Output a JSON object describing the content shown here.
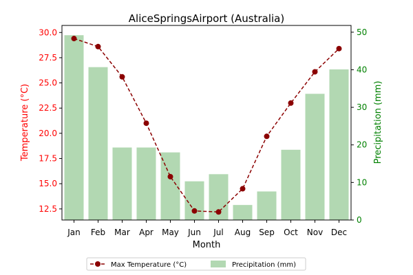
{
  "chart_data": {
    "type": "bar+line",
    "title": "AliceSpringsAirport (Australia)",
    "xlabel": "Month",
    "categories": [
      "Jan",
      "Feb",
      "Mar",
      "Apr",
      "May",
      "Jun",
      "Jul",
      "Aug",
      "Sep",
      "Oct",
      "Nov",
      "Dec"
    ],
    "y_left": {
      "label": "Temperature (°C)",
      "range": [
        11.4,
        30.7
      ],
      "ticks": [
        "12.5",
        "15.0",
        "17.5",
        "20.0",
        "22.5",
        "25.0",
        "27.5",
        "30.0"
      ],
      "color": "#ff0000"
    },
    "y_right": {
      "label": "Precipitation (mm)",
      "range": [
        0,
        51.8
      ],
      "ticks": [
        "0",
        "10",
        "20",
        "30",
        "40",
        "50"
      ],
      "color": "#008000"
    },
    "series": [
      {
        "name": "Max Temperature (°C)",
        "type": "line",
        "axis": "left",
        "color": "#8b0000",
        "values": [
          29.4,
          28.6,
          25.6,
          21.0,
          15.7,
          12.3,
          12.2,
          14.5,
          19.7,
          23.0,
          26.1,
          28.4
        ]
      },
      {
        "name": "Precipitation (mm)",
        "type": "bar",
        "axis": "right",
        "color": "#b2d8b2",
        "values": [
          49.2,
          40.7,
          19.3,
          19.3,
          18.0,
          10.3,
          12.2,
          4.0,
          7.6,
          18.7,
          33.6,
          40.1
        ]
      }
    ],
    "legend": {
      "placement": "bottom-center"
    },
    "grid": false
  }
}
